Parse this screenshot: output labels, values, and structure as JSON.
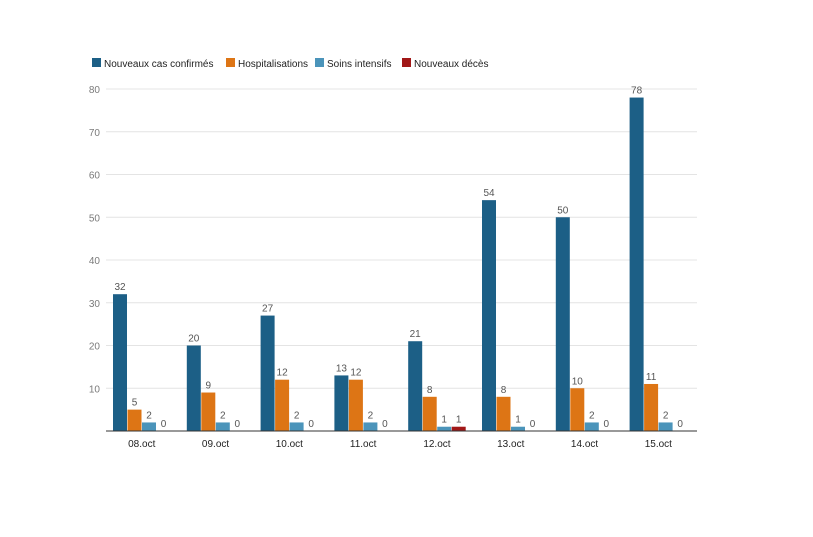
{
  "chart_data": {
    "type": "bar",
    "title": "",
    "xlabel": "",
    "ylabel": "",
    "categories": [
      "08.oct",
      "09.oct",
      "10.oct",
      "11.oct",
      "12.oct",
      "13.oct",
      "14.oct",
      "15.oct"
    ],
    "series": [
      {
        "name": "Nouveaux cas confirmés",
        "color": "#1c5f86",
        "values": [
          32,
          20,
          27,
          13,
          21,
          54,
          50,
          78
        ]
      },
      {
        "name": "Hospitalisations",
        "color": "#dd7515",
        "values": [
          5,
          9,
          12,
          12,
          8,
          8,
          10,
          11
        ]
      },
      {
        "name": "Soins intensifs",
        "color": "#4b94ba",
        "values": [
          2,
          2,
          2,
          2,
          1,
          1,
          2,
          2
        ]
      },
      {
        "name": "Nouveaux décès",
        "color": "#a11717",
        "values": [
          0,
          0,
          0,
          0,
          1,
          0,
          0,
          0
        ]
      }
    ],
    "yticks": [
      "10",
      "20",
      "30",
      "40",
      "50",
      "60",
      "70",
      "80"
    ],
    "ylim": [
      0,
      80
    ],
    "grid": true,
    "legend_position": "top-left"
  }
}
